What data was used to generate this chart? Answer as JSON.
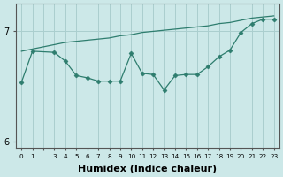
{
  "xlabel": "Humidex (Indice chaleur)",
  "ylabel": "",
  "x_main": [
    0,
    1,
    3,
    4,
    5,
    6,
    7,
    8,
    9,
    10,
    11,
    12,
    13,
    14,
    15,
    16,
    17,
    18,
    19,
    20,
    21,
    22,
    23
  ],
  "y_main": [
    6.54,
    6.82,
    6.81,
    6.73,
    6.6,
    6.58,
    6.55,
    6.55,
    6.55,
    6.8,
    6.62,
    6.61,
    6.47,
    6.6,
    6.61,
    6.61,
    6.68,
    6.77,
    6.83,
    6.99,
    7.07,
    7.11,
    7.11
  ],
  "x_trend": [
    0,
    1,
    2,
    3,
    4,
    5,
    6,
    7,
    8,
    9,
    10,
    11,
    12,
    13,
    14,
    15,
    16,
    17,
    18,
    19,
    20,
    21,
    22,
    23
  ],
  "y_trend": [
    6.82,
    6.84,
    6.86,
    6.88,
    6.9,
    6.91,
    6.92,
    6.93,
    6.94,
    6.96,
    6.97,
    6.99,
    7.0,
    7.01,
    7.02,
    7.03,
    7.04,
    7.05,
    7.07,
    7.08,
    7.1,
    7.12,
    7.13,
    7.14
  ],
  "line_color": "#2e7d6e",
  "marker": "D",
  "marker_size": 2.5,
  "background_color": "#cce8e8",
  "grid_color": "#aacece",
  "ylim": [
    5.95,
    7.25
  ],
  "yticks": [
    6,
    7
  ],
  "axis_color": "#555555",
  "font_color": "#000000",
  "font_size": 7,
  "xlabel_fontsize": 8
}
